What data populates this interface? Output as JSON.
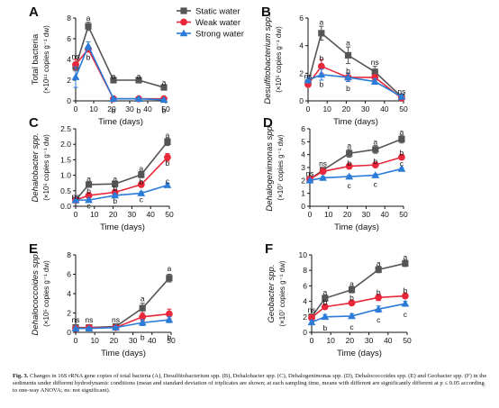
{
  "figure": {
    "caption_label": "Fig. 3.",
    "caption_text": "Changes in 16S rRNA gene copies of total bacteria (A), Desulfitobacterium spp. (B), Dehalobacter spp. (C), Dehalogenimonas spp. (D), Dehalococcoides spp. (E) and Geobacter spp. (F) in the sediments under different hydrodynamic conditions (mean and standard deviation of triplicates are shown; at each sampling time, means with different are significantly different at p ≤ 0.05 according to one-way ANOVA; ns: not significant)."
  },
  "legend": [
    {
      "name": "Static water",
      "color": "#555555",
      "marker": "square"
    },
    {
      "name": "Weak water",
      "color": "#e8283a",
      "marker": "circle"
    },
    {
      "name": "Strong water",
      "color": "#2b7bd8",
      "marker": "triangle"
    }
  ],
  "chart_data": [
    {
      "panel": "A",
      "type": "line",
      "xlabel": "Time (days)",
      "ylabel": "Total bacteria",
      "ylabel2": "(×10¹¹ copies g⁻¹ dw)",
      "x": [
        0,
        7,
        21,
        35,
        49
      ],
      "xticks": [
        0,
        10,
        20,
        30,
        40,
        50
      ],
      "xlim": [
        0,
        50
      ],
      "yticks": [
        0,
        2,
        4,
        6,
        8
      ],
      "ylim": [
        0,
        8
      ],
      "series": [
        {
          "name": "Static water",
          "values": [
            3.3,
            7.2,
            2.0,
            2.0,
            1.3
          ],
          "errors": [
            0.4,
            0.4,
            0.2,
            0.2,
            0.2
          ]
        },
        {
          "name": "Weak water",
          "values": [
            3.5,
            5.0,
            0.2,
            0.2,
            0.2
          ],
          "errors": [
            0.5,
            0.3,
            0.1,
            0.1,
            0.1
          ]
        },
        {
          "name": "Strong water",
          "values": [
            2.3,
            5.3,
            0.2,
            0.2,
            0.1
          ],
          "errors": [
            1.0,
            0.4,
            0.1,
            0.1,
            0.1
          ]
        }
      ],
      "annotations": [
        {
          "x": 0,
          "y": 4.3,
          "text": "ns"
        },
        {
          "x": 7,
          "y": 8.0,
          "text": "a"
        },
        {
          "x": 7,
          "y": 4.2,
          "text": "b"
        },
        {
          "x": 21,
          "y": 2.4,
          "text": "a"
        },
        {
          "x": 21,
          "y": -0.9,
          "text": "b"
        },
        {
          "x": 35,
          "y": 2.4,
          "text": "a"
        },
        {
          "x": 35,
          "y": -0.9,
          "text": "b"
        },
        {
          "x": 49,
          "y": 1.8,
          "text": "a"
        },
        {
          "x": 49,
          "y": -0.9,
          "text": "b"
        }
      ]
    },
    {
      "panel": "B",
      "type": "line",
      "xlabel": "Time (days)",
      "ylabel": "Desulfitobacterium spp.",
      "ylabel2": "(×10⁵ copies g⁻¹ dw)",
      "x": [
        0,
        7,
        21,
        35,
        49
      ],
      "xticks": [
        0,
        10,
        20,
        30,
        40,
        50
      ],
      "xlim": [
        0,
        50
      ],
      "yticks": [
        0,
        2,
        4,
        6
      ],
      "ylim": [
        0,
        6
      ],
      "series": [
        {
          "name": "Static water",
          "values": [
            1.3,
            4.9,
            3.3,
            2.1,
            0.3
          ],
          "errors": [
            0.2,
            0.5,
            0.6,
            0.4,
            0.1
          ]
        },
        {
          "name": "Weak water",
          "values": [
            1.2,
            2.5,
            1.7,
            1.7,
            0.2
          ],
          "errors": [
            0.2,
            0.5,
            0.3,
            0.2,
            0.1
          ]
        },
        {
          "name": "Strong water",
          "values": [
            1.5,
            1.9,
            1.7,
            1.4,
            0.3
          ],
          "errors": [
            0.2,
            0.4,
            0.3,
            0.2,
            0.1
          ]
        }
      ],
      "annotations": [
        {
          "x": 0,
          "y": 1.8,
          "text": "ns"
        },
        {
          "x": 7,
          "y": 5.7,
          "text": "a"
        },
        {
          "x": 7,
          "y": 3.1,
          "text": "b"
        },
        {
          "x": 7,
          "y": 1.2,
          "text": "b"
        },
        {
          "x": 21,
          "y": 4.2,
          "text": "a"
        },
        {
          "x": 21,
          "y": 2.2,
          "text": "b"
        },
        {
          "x": 21,
          "y": 0.9,
          "text": "b"
        },
        {
          "x": 35,
          "y": 2.8,
          "text": "ns"
        },
        {
          "x": 49,
          "y": 0.7,
          "text": "ns"
        }
      ]
    },
    {
      "panel": "C",
      "type": "line",
      "xlabel": "Time (days)",
      "ylabel": "Dehalobacter spp.",
      "ylabel2": "(×10⁵ copies g⁻¹ dw)",
      "x": [
        0,
        7,
        21,
        35,
        49
      ],
      "xticks": [
        0,
        10,
        20,
        30,
        40,
        50
      ],
      "xlim": [
        0,
        50
      ],
      "yticks": [
        0.0,
        0.5,
        1.0,
        1.5,
        2.0,
        2.5
      ],
      "ylim": [
        0,
        2.5
      ],
      "ytick_labels": [
        "0.0",
        "0.5",
        "1.0",
        "1.5",
        "2.0",
        "2.5"
      ],
      "series": [
        {
          "name": "Static water",
          "values": [
            0.2,
            0.7,
            0.72,
            1.02,
            2.08
          ],
          "errors": [
            0.03,
            0.08,
            0.08,
            0.1,
            0.12
          ]
        },
        {
          "name": "Weak water",
          "values": [
            0.2,
            0.35,
            0.45,
            0.7,
            1.58
          ],
          "errors": [
            0.03,
            0.05,
            0.05,
            0.08,
            0.12
          ]
        },
        {
          "name": "Strong water",
          "values": [
            0.2,
            0.2,
            0.35,
            0.42,
            0.68
          ],
          "errors": [
            0.03,
            0.04,
            0.05,
            0.05,
            0.05
          ]
        }
      ],
      "annotations": [
        {
          "x": 0,
          "y": 0.32,
          "text": "ns"
        },
        {
          "x": 7,
          "y": 0.88,
          "text": "a"
        },
        {
          "x": 7,
          "y": 0.5,
          "text": "b"
        },
        {
          "x": 7,
          "y": 0.02,
          "text": "c"
        },
        {
          "x": 21,
          "y": 0.88,
          "text": "a"
        },
        {
          "x": 21,
          "y": 0.58,
          "text": "b"
        },
        {
          "x": 21,
          "y": 0.18,
          "text": "b"
        },
        {
          "x": 35,
          "y": 1.22,
          "text": "a"
        },
        {
          "x": 35,
          "y": 0.8,
          "text": "b"
        },
        {
          "x": 35,
          "y": 0.22,
          "text": "c"
        },
        {
          "x": 49,
          "y": 2.3,
          "text": "a"
        },
        {
          "x": 49,
          "y": 1.4,
          "text": "b"
        },
        {
          "x": 49,
          "y": 0.82,
          "text": "c"
        }
      ]
    },
    {
      "panel": "D",
      "type": "line",
      "xlabel": "Time (days)",
      "ylabel": "Dehalogenimonas spp.",
      "ylabel2": "(×10⁷ copies g⁻¹ dw)",
      "x": [
        0,
        7,
        21,
        35,
        49
      ],
      "xticks": [
        0,
        10,
        20,
        30,
        40,
        50
      ],
      "xlim": [
        0,
        50
      ],
      "yticks": [
        0,
        1,
        2,
        3,
        4,
        5,
        6
      ],
      "ylim": [
        0,
        6
      ],
      "series": [
        {
          "name": "Static water",
          "values": [
            2.1,
            2.8,
            4.1,
            4.4,
            5.2
          ],
          "errors": [
            0.1,
            0.2,
            0.3,
            0.3,
            0.3
          ]
        },
        {
          "name": "Weak water",
          "values": [
            2.1,
            2.7,
            3.1,
            3.2,
            3.8
          ],
          "errors": [
            0.1,
            0.2,
            0.2,
            0.2,
            0.2
          ]
        },
        {
          "name": "Strong water",
          "values": [
            2.0,
            2.2,
            2.3,
            2.4,
            2.9
          ],
          "errors": [
            0.1,
            0.1,
            0.1,
            0.1,
            0.1
          ]
        }
      ],
      "annotations": [
        {
          "x": 0,
          "y": 2.55,
          "text": "ns"
        },
        {
          "x": 7,
          "y": 3.3,
          "text": "ns"
        },
        {
          "x": 21,
          "y": 4.7,
          "text": "a"
        },
        {
          "x": 21,
          "y": 3.35,
          "text": "b"
        },
        {
          "x": 21,
          "y": 1.6,
          "text": "c"
        },
        {
          "x": 35,
          "y": 5.0,
          "text": "a"
        },
        {
          "x": 35,
          "y": 3.5,
          "text": "b"
        },
        {
          "x": 35,
          "y": 1.7,
          "text": "c"
        },
        {
          "x": 49,
          "y": 5.75,
          "text": "a"
        },
        {
          "x": 49,
          "y": 4.15,
          "text": "b"
        },
        {
          "x": 49,
          "y": 3.3,
          "text": "c"
        }
      ]
    },
    {
      "panel": "E",
      "type": "line",
      "xlabel": "Time (days)",
      "ylabel": "Dehalococcoides spp.",
      "ylabel2": "(×10⁵ copies g⁻¹ dw)",
      "x": [
        0,
        7,
        21,
        35,
        49
      ],
      "xticks": [
        0,
        10,
        20,
        30,
        40,
        50
      ],
      "xlim": [
        0,
        50
      ],
      "yticks": [
        0,
        2,
        4,
        6,
        8
      ],
      "ylim": [
        0,
        8
      ],
      "series": [
        {
          "name": "Static water",
          "values": [
            0.5,
            0.5,
            0.6,
            2.5,
            5.6
          ],
          "errors": [
            0.1,
            0.1,
            0.1,
            0.5,
            0.4
          ]
        },
        {
          "name": "Weak water",
          "values": [
            0.4,
            0.5,
            0.5,
            1.6,
            1.9
          ],
          "errors": [
            0.1,
            0.1,
            0.1,
            0.4,
            0.5
          ]
        },
        {
          "name": "Strong water",
          "values": [
            0.4,
            0.4,
            0.5,
            1.0,
            1.3
          ],
          "errors": [
            0.1,
            0.1,
            0.1,
            0.3,
            0.3
          ]
        }
      ],
      "annotations": [
        {
          "x": 0,
          "y": 1.3,
          "text": "ns"
        },
        {
          "x": 7,
          "y": 1.3,
          "text": "ns"
        },
        {
          "x": 21,
          "y": 1.3,
          "text": "ns"
        },
        {
          "x": 35,
          "y": 3.5,
          "text": "a"
        },
        {
          "x": 35,
          "y": -0.5,
          "text": "b"
        },
        {
          "x": 49,
          "y": 6.6,
          "text": "a"
        },
        {
          "x": 49,
          "y": -0.5,
          "text": "b"
        }
      ]
    },
    {
      "panel": "F",
      "type": "line",
      "xlabel": "Time (days)",
      "ylabel": "Geobacter spp.",
      "ylabel2": "(×10⁷ copies g⁻¹ dw)",
      "x": [
        0,
        7,
        21,
        35,
        49
      ],
      "xticks": [
        0,
        10,
        20,
        30,
        40,
        50
      ],
      "xlim": [
        0,
        50
      ],
      "yticks": [
        0,
        2,
        4,
        6,
        8,
        10
      ],
      "ylim": [
        0,
        10
      ],
      "series": [
        {
          "name": "Static water",
          "values": [
            2.0,
            4.4,
            5.5,
            8.1,
            8.9
          ],
          "errors": [
            0.2,
            0.4,
            0.4,
            0.4,
            0.4
          ]
        },
        {
          "name": "Weak water",
          "values": [
            1.9,
            3.3,
            3.8,
            4.5,
            4.7
          ],
          "errors": [
            0.2,
            0.3,
            0.3,
            0.4,
            0.3
          ]
        },
        {
          "name": "Strong water",
          "values": [
            1.3,
            2.0,
            2.1,
            3.0,
            3.7
          ],
          "errors": [
            0.2,
            0.3,
            0.3,
            0.4,
            0.3
          ]
        }
      ],
      "annotations": [
        {
          "x": 0,
          "y": 2.9,
          "text": "ns"
        },
        {
          "x": 7,
          "y": 5.2,
          "text": "a"
        },
        {
          "x": 7,
          "y": 3.9,
          "text": "b"
        },
        {
          "x": 7,
          "y": 0.6,
          "text": "b"
        },
        {
          "x": 21,
          "y": 6.3,
          "text": "a"
        },
        {
          "x": 21,
          "y": 4.5,
          "text": "b"
        },
        {
          "x": 21,
          "y": 0.7,
          "text": "c"
        },
        {
          "x": 35,
          "y": 8.9,
          "text": "a"
        },
        {
          "x": 35,
          "y": 5.2,
          "text": "b"
        },
        {
          "x": 35,
          "y": 1.6,
          "text": "c"
        },
        {
          "x": 49,
          "y": 9.7,
          "text": "a"
        },
        {
          "x": 49,
          "y": 5.4,
          "text": "b"
        },
        {
          "x": 49,
          "y": 2.3,
          "text": "c"
        }
      ]
    }
  ]
}
